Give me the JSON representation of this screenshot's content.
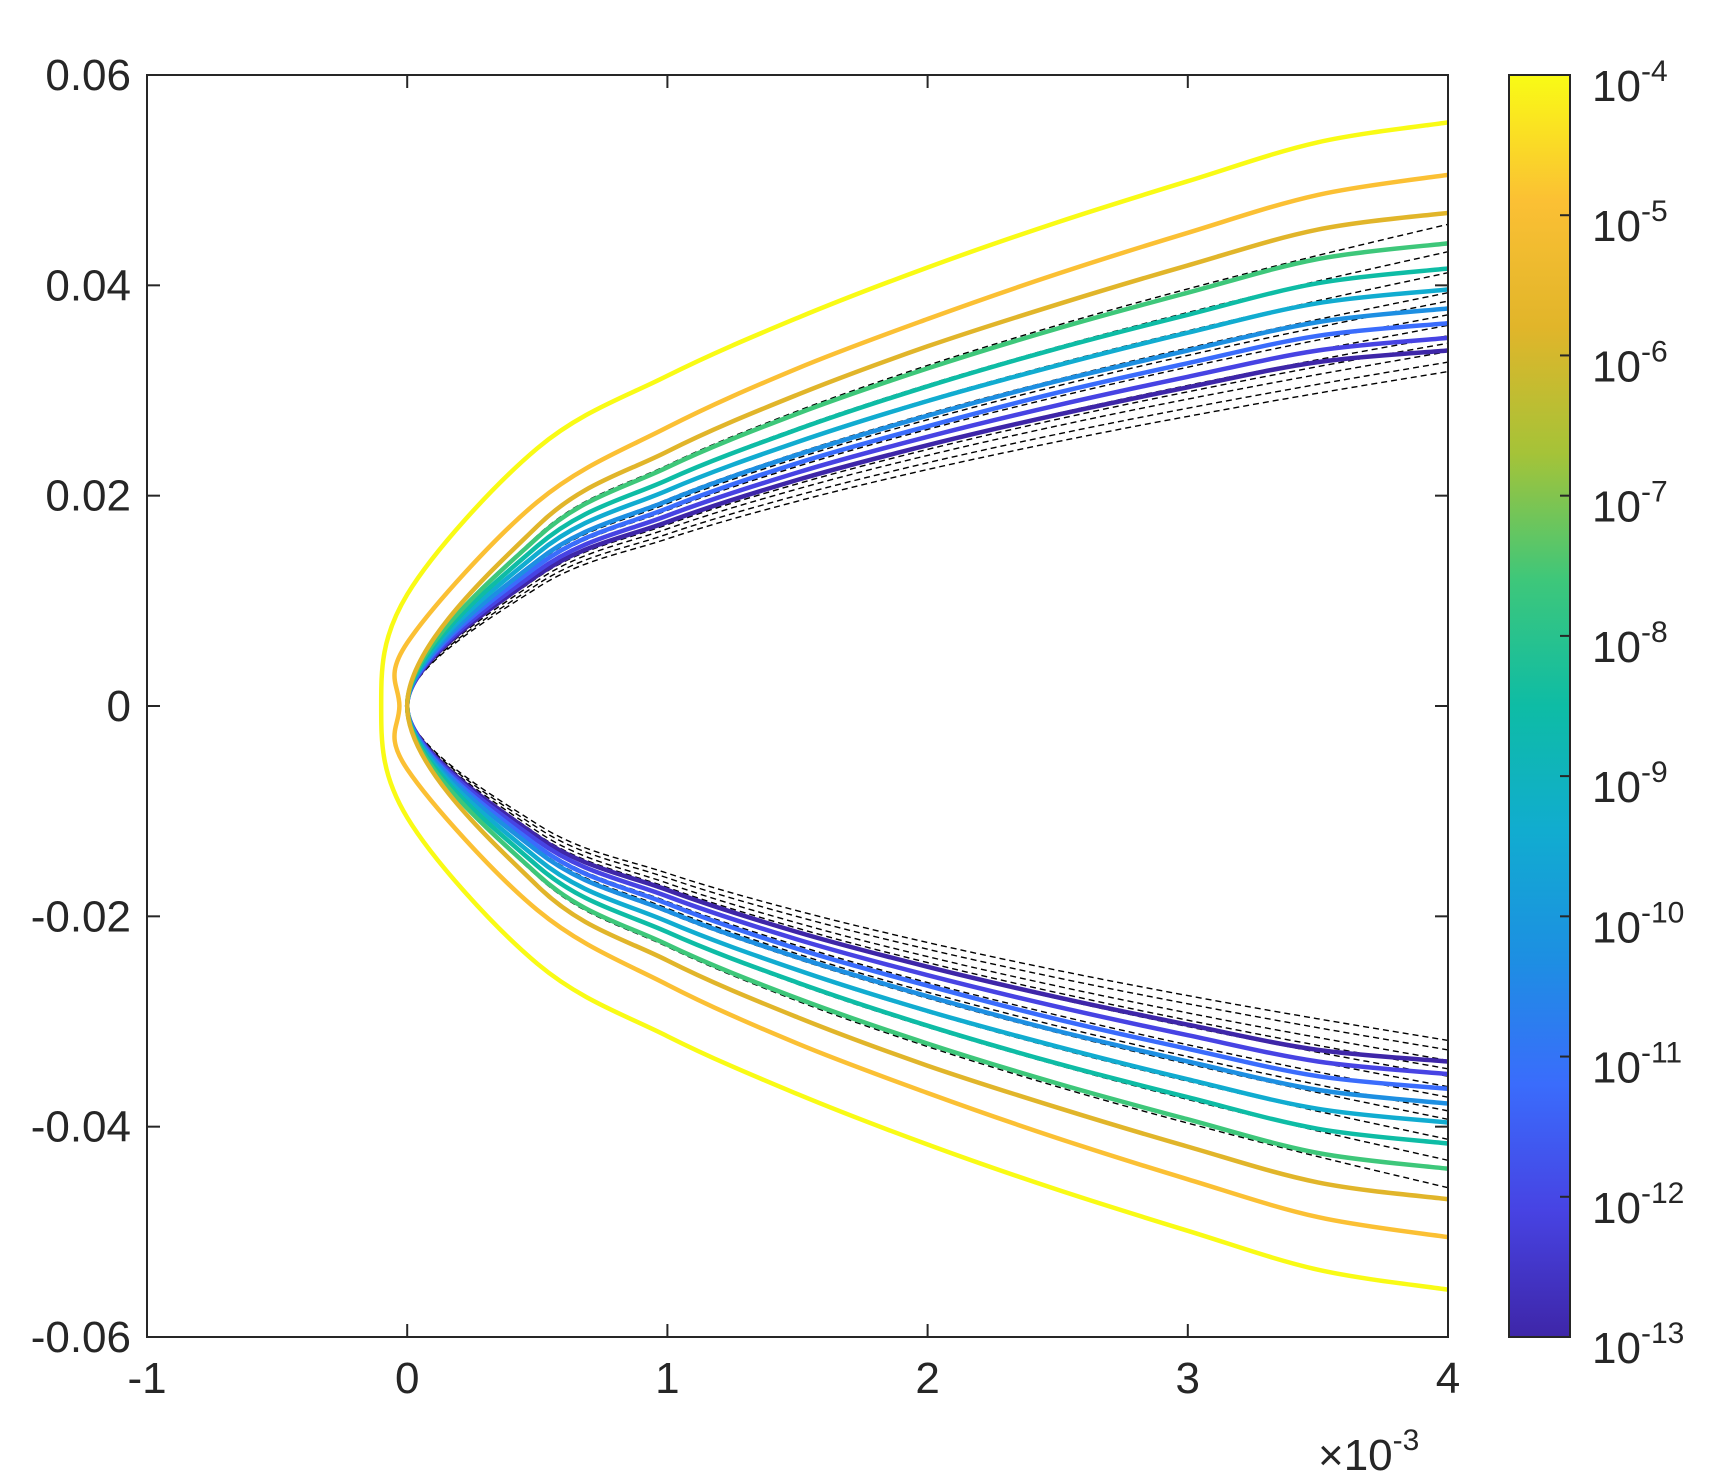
{
  "chart_data": {
    "type": "line",
    "title": "",
    "xlabel": "",
    "ylabel": "",
    "xlim": [
      -0.001,
      0.004
    ],
    "ylim": [
      -0.06,
      0.06
    ],
    "x_tick_labels": [
      "-1",
      "0",
      "1",
      "2",
      "3",
      "4"
    ],
    "x_tick_values": [
      -1,
      0,
      1,
      2,
      3,
      4
    ],
    "x_multiplier": {
      "base": "×10",
      "exponent": "-3"
    },
    "y_tick_labels": [
      "0.06",
      "0.04",
      "0.02",
      "0",
      "-0.02",
      "-0.04",
      "-0.06"
    ],
    "y_tick_values": [
      0.06,
      0.04,
      0.02,
      0,
      -0.02,
      -0.04,
      -0.06
    ],
    "colorbar": {
      "scale": "log",
      "range": [
        1e-13,
        0.0001
      ],
      "colormap": "parula",
      "ticks": [
        {
          "base": "10",
          "exponent": "-4"
        },
        {
          "base": "10",
          "exponent": "-5"
        },
        {
          "base": "10",
          "exponent": "-6"
        },
        {
          "base": "10",
          "exponent": "-7"
        },
        {
          "base": "10",
          "exponent": "-8"
        },
        {
          "base": "10",
          "exponent": "-9"
        },
        {
          "base": "10",
          "exponent": "-10"
        },
        {
          "base": "10",
          "exponent": "-11"
        },
        {
          "base": "10",
          "exponent": "-12"
        },
        {
          "base": "10",
          "exponent": "-13"
        }
      ],
      "stops": [
        "#3e26a8",
        "#4743e3",
        "#3a6cfc",
        "#1d8fe2",
        "#11acd0",
        "#0ebca5",
        "#3ec77a",
        "#a5c338",
        "#e1b52a",
        "#fbc034",
        "#f9fb15"
      ]
    },
    "series": [
      {
        "color_value": 0.0001,
        "color": "#f9fb15",
        "x": [
          -0.0001,
          0,
          0.0005,
          0.001,
          0.0015,
          0.002,
          0.0025,
          0.003,
          0.0035,
          0.004
        ],
        "y_upper": [
          0,
          0.0106,
          0.0245,
          0.0314,
          0.0369,
          0.0417,
          0.046,
          0.0499,
          0.0536,
          0.0555
        ]
      },
      {
        "color_value": 1e-05,
        "color": "#fbc034",
        "x": [
          -3e-05,
          0,
          0.0005,
          0.001,
          0.0015,
          0.002,
          0.0025,
          0.003,
          0.0035,
          0.004
        ],
        "y_upper": [
          0,
          0.006,
          0.0194,
          0.0265,
          0.0321,
          0.0368,
          0.0411,
          0.045,
          0.0486,
          0.0505
        ]
      },
      {
        "color_value": 1e-06,
        "color": "#e1b52a",
        "x": [
          0,
          0.0005,
          0.001,
          0.0015,
          0.002,
          0.0025,
          0.003,
          0.0035,
          0.004
        ],
        "y_upper": [
          0,
          0.0171,
          0.0242,
          0.0296,
          0.0342,
          0.0382,
          0.0419,
          0.0453,
          0.0469
        ]
      },
      {
        "color_value": 1e-07,
        "color": "#3ec77a",
        "x": [
          0,
          0.0005,
          0.001,
          0.0015,
          0.002,
          0.0025,
          0.003,
          0.0035,
          0.004
        ],
        "y_upper": [
          0,
          0.016,
          0.0227,
          0.0278,
          0.0321,
          0.0359,
          0.0393,
          0.0425,
          0.044
        ]
      },
      {
        "color_value": 1e-08,
        "color": "#0ebca5",
        "x": [
          0,
          0.0005,
          0.001,
          0.0015,
          0.002,
          0.0025,
          0.003,
          0.0035,
          0.004
        ],
        "y_upper": [
          0,
          0.0152,
          0.0215,
          0.0263,
          0.0304,
          0.034,
          0.0372,
          0.0402,
          0.0416
        ]
      },
      {
        "color_value": 1e-09,
        "color": "#11acd0",
        "x": [
          0,
          0.0005,
          0.001,
          0.0015,
          0.002,
          0.0025,
          0.003,
          0.0035,
          0.004
        ],
        "y_upper": [
          0,
          0.0145,
          0.0205,
          0.0251,
          0.029,
          0.0324,
          0.0355,
          0.0383,
          0.0396
        ]
      },
      {
        "color_value": 1e-10,
        "color": "#1d8fe2",
        "x": [
          0,
          0.0005,
          0.001,
          0.0015,
          0.002,
          0.0025,
          0.003,
          0.0035,
          0.004
        ],
        "y_upper": [
          0,
          0.0138,
          0.0195,
          0.0239,
          0.0276,
          0.0309,
          0.0338,
          0.0365,
          0.0378
        ]
      },
      {
        "color_value": 1e-11,
        "color": "#3a6cfc",
        "x": [
          0,
          0.0005,
          0.001,
          0.0015,
          0.002,
          0.0025,
          0.003,
          0.0035,
          0.004
        ],
        "y_upper": [
          0,
          0.0133,
          0.0188,
          0.0231,
          0.0266,
          0.0298,
          0.0326,
          0.0352,
          0.0364
        ]
      },
      {
        "color_value": 1e-12,
        "color": "#4743e3",
        "x": [
          0,
          0.0005,
          0.001,
          0.0015,
          0.002,
          0.0025,
          0.003,
          0.0035,
          0.004
        ],
        "y_upper": [
          0,
          0.0128,
          0.0181,
          0.0222,
          0.0256,
          0.0286,
          0.0313,
          0.0338,
          0.035
        ]
      },
      {
        "color_value": 1e-13,
        "color": "#3e26a8",
        "x": [
          0,
          0.0005,
          0.001,
          0.0015,
          0.002,
          0.0025,
          0.003,
          0.0035,
          0.004
        ],
        "y_upper": [
          0,
          0.0124,
          0.0175,
          0.0215,
          0.0248,
          0.0277,
          0.0303,
          0.0327,
          0.0338
        ]
      }
    ],
    "reference_curves": {
      "style": "dashed",
      "color": "#000000",
      "x": [
        0,
        0.0005,
        0.001,
        0.0015,
        0.002,
        0.0025,
        0.003,
        0.0035,
        0.004
      ],
      "y_upper_at_x_max": [
        0.0458,
        0.0432,
        0.0412,
        0.0393,
        0.0385,
        0.0372,
        0.0362,
        0.0352,
        0.0345,
        0.0337,
        0.0327,
        0.0318
      ],
      "y_upper_scaled_by_sqrt_x": true,
      "mirrored": true
    },
    "mirrored_about_y0": true,
    "grid": false,
    "legend": "none"
  }
}
